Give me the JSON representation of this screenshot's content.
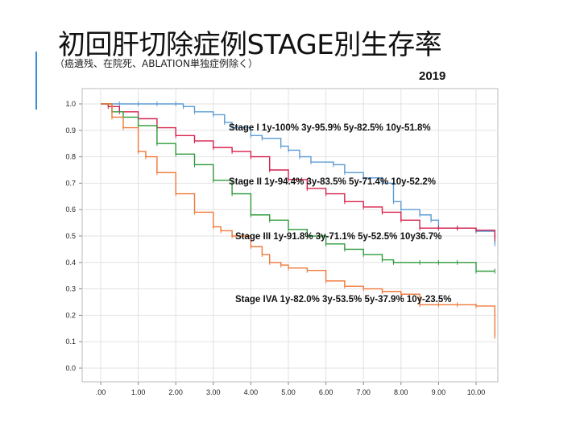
{
  "slide": {
    "title": "初回肝切除症例STAGE別生存率",
    "subtitle": "（癌遺残、在院死、ABLATION単独症例除く）",
    "year": "2019"
  },
  "colors": {
    "accent": "#3a8fd6",
    "stage1": "#5b9bd5",
    "stage2": "#d6204b",
    "stage3": "#2e9a3a",
    "stage4": "#f0783a"
  },
  "chart_data": {
    "type": "line",
    "title": "",
    "xlabel": "",
    "ylabel": "",
    "xlim": [
      0,
      10.5
    ],
    "ylim": [
      0,
      1
    ],
    "x_ticks": [
      ".00",
      "1.00",
      "2.00",
      "3.00",
      "4.00",
      "5.00",
      "6.00",
      "7.00",
      "8.00",
      "9.00",
      "10.00"
    ],
    "y_ticks": [
      "0.0",
      "0.1",
      "0.2",
      "0.3",
      "0.4",
      "0.5",
      "0.6",
      "0.7",
      "0.8",
      "0.9",
      "1.0"
    ],
    "grid": true,
    "annotations": [
      {
        "series": "Stage I",
        "text": "Stage I  1y-100% 3y-95.9% 5y-82.5% 10y-51.8%"
      },
      {
        "series": "Stage II",
        "text": "Stage II  1y-94.4% 3y-83.5% 5y-71.4% 10y-52.2%"
      },
      {
        "series": "Stage III",
        "text": "Stage III 1y-91.8% 3y-71.1% 5y-52.5% 10y36.7%"
      },
      {
        "series": "Stage IVA",
        "text": "Stage IVA 1y-82.0% 3y-53.5% 5y-37.9% 10y-23.5%"
      }
    ],
    "series": [
      {
        "color_key": "stage1",
        "x": [
          0,
          0.5,
          1.0,
          1.5,
          2.0,
          2.2,
          2.5,
          3.0,
          3.3,
          3.5,
          4.0,
          4.3,
          4.8,
          5.0,
          5.3,
          5.6,
          6.2,
          6.5,
          7.0,
          7.5,
          7.8,
          8.0,
          8.5,
          8.8,
          9.0,
          9.5,
          10.0,
          10.5
        ],
        "y": [
          1.0,
          1.0,
          1.0,
          1.0,
          1.0,
          0.99,
          0.97,
          0.959,
          0.93,
          0.91,
          0.88,
          0.87,
          0.84,
          0.825,
          0.8,
          0.78,
          0.77,
          0.74,
          0.72,
          0.7,
          0.63,
          0.6,
          0.58,
          0.56,
          0.53,
          0.53,
          0.518,
          0.47
        ]
      },
      {
        "color_key": "stage2",
        "x": [
          0,
          0.2,
          0.5,
          1.0,
          1.5,
          2.0,
          2.5,
          3.0,
          3.5,
          4.0,
          4.5,
          5.0,
          5.5,
          6.0,
          6.5,
          7.0,
          7.5,
          8.0,
          8.5,
          9.0,
          9.5,
          10.0,
          10.5
        ],
        "y": [
          1.0,
          0.99,
          0.97,
          0.944,
          0.91,
          0.88,
          0.86,
          0.835,
          0.82,
          0.8,
          0.75,
          0.714,
          0.68,
          0.66,
          0.63,
          0.61,
          0.59,
          0.56,
          0.53,
          0.53,
          0.53,
          0.522,
          0.49
        ]
      },
      {
        "color_key": "stage3",
        "x": [
          0,
          0.3,
          0.6,
          1.0,
          1.5,
          2.0,
          2.5,
          3.0,
          3.5,
          4.0,
          4.5,
          5.0,
          5.5,
          6.0,
          6.5,
          7.0,
          7.5,
          7.8,
          8.5,
          9.0,
          9.5,
          10.0,
          10.5
        ],
        "y": [
          1.0,
          0.97,
          0.95,
          0.918,
          0.85,
          0.81,
          0.77,
          0.711,
          0.66,
          0.58,
          0.56,
          0.525,
          0.5,
          0.47,
          0.45,
          0.43,
          0.41,
          0.4,
          0.4,
          0.4,
          0.4,
          0.367,
          0.367
        ]
      },
      {
        "color_key": "stage4",
        "x": [
          0,
          0.3,
          0.6,
          1.0,
          1.2,
          1.5,
          2.0,
          2.5,
          3.0,
          3.2,
          3.5,
          4.0,
          4.3,
          4.5,
          4.8,
          5.0,
          5.5,
          6.0,
          6.5,
          7.0,
          7.5,
          8.0,
          8.5,
          9.0,
          9.5,
          10.0,
          10.5
        ],
        "y": [
          1.0,
          0.95,
          0.91,
          0.82,
          0.8,
          0.74,
          0.66,
          0.59,
          0.535,
          0.52,
          0.5,
          0.46,
          0.43,
          0.4,
          0.39,
          0.379,
          0.37,
          0.33,
          0.31,
          0.3,
          0.29,
          0.28,
          0.24,
          0.24,
          0.24,
          0.235,
          0.12
        ]
      }
    ]
  }
}
